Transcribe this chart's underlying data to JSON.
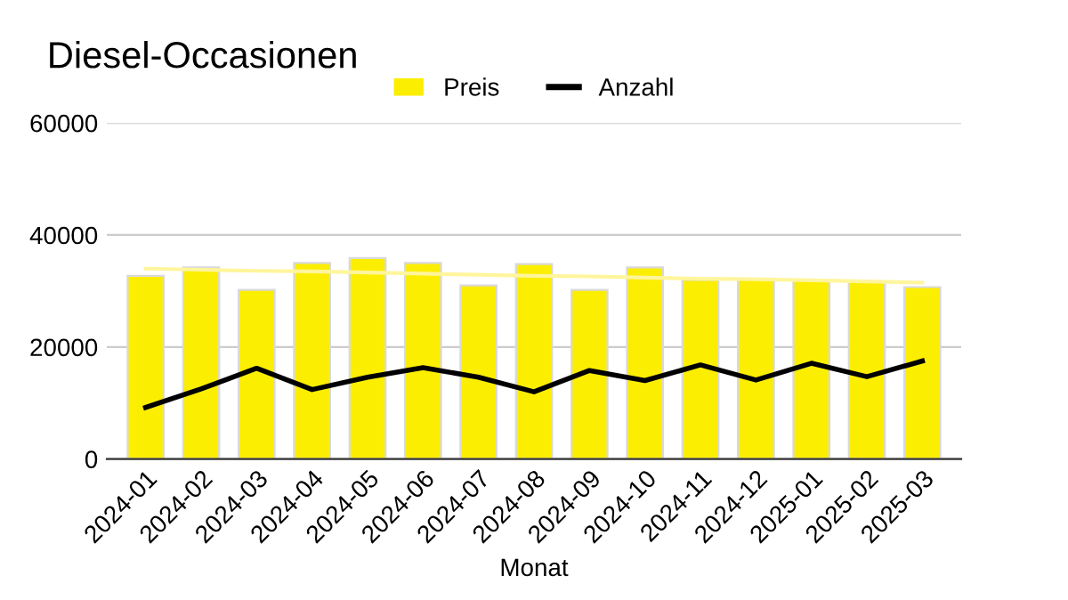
{
  "chart_data": {
    "type": "bar",
    "title": "Diesel-Occasionen",
    "xlabel": "Monat",
    "categories": [
      "2024-01",
      "2024-02",
      "2024-03",
      "2024-04",
      "2024-05",
      "2024-06",
      "2024-07",
      "2024-08",
      "2024-09",
      "2024-10",
      "2024-11",
      "2024-12",
      "2025-01",
      "2025-02",
      "2025-03"
    ],
    "series": [
      {
        "name": "Preis",
        "color": "#fcee00",
        "values": [
          32700,
          34200,
          30200,
          35000,
          35900,
          35000,
          31000,
          34800,
          30200,
          34200,
          32000,
          32200,
          32000,
          31700,
          30700
        ]
      },
      {
        "name": "Anzahl",
        "type": "line",
        "color": "#000000",
        "values": [
          9200,
          12500,
          16200,
          12400,
          14600,
          16300,
          14600,
          12000,
          15800,
          14000,
          16800,
          14100,
          17100,
          14700,
          17500
        ]
      },
      {
        "type": "line",
        "color": "#fff59d",
        "values": [
          34000,
          33800,
          33600,
          33500,
          33300,
          33100,
          32900,
          32700,
          32600,
          32400,
          32200,
          32100,
          31900,
          31700,
          31500
        ]
      }
    ],
    "ylim": [
      0,
      60000
    ],
    "yticks": [
      0,
      20000,
      40000,
      60000
    ],
    "grid": "y",
    "legend": "top",
    "marker": "none",
    "line_style": "solid"
  }
}
